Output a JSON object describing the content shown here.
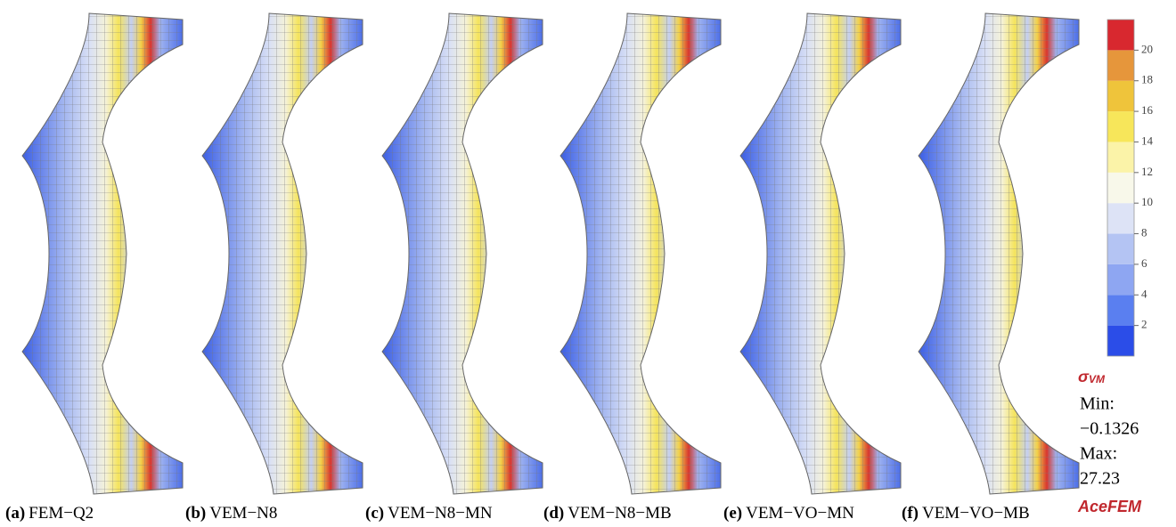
{
  "panels": [
    {
      "letter": "(a)",
      "name": "FEM−Q2"
    },
    {
      "letter": "(b)",
      "name": "VEM−N8"
    },
    {
      "letter": "(c)",
      "name": "VEM−N8−MN"
    },
    {
      "letter": "(d)",
      "name": "VEM−N8−MB"
    },
    {
      "letter": "(e)",
      "name": "VEM−VO−MN"
    },
    {
      "letter": "(f)",
      "name": "VEM−VO−MB"
    }
  ],
  "colorbar": {
    "lim": [
      0,
      22
    ],
    "ticks": [
      2,
      4,
      6,
      8,
      10,
      12,
      14,
      16,
      18,
      20
    ],
    "colors": [
      "#2b4de8",
      "#5a7ff0",
      "#8ea6f2",
      "#b4c4f3",
      "#dde3f6",
      "#f8f8ea",
      "#fbf3a8",
      "#f7e65a",
      "#efc43b",
      "#e6963b",
      "#d8282f"
    ]
  },
  "legend": {
    "symbol": "σ",
    "subscript": "VM",
    "min_label": "Min:",
    "min_value": "−0.1326",
    "max_label": "Max:",
    "max_value": "27.23",
    "software": "AceFEM"
  }
}
